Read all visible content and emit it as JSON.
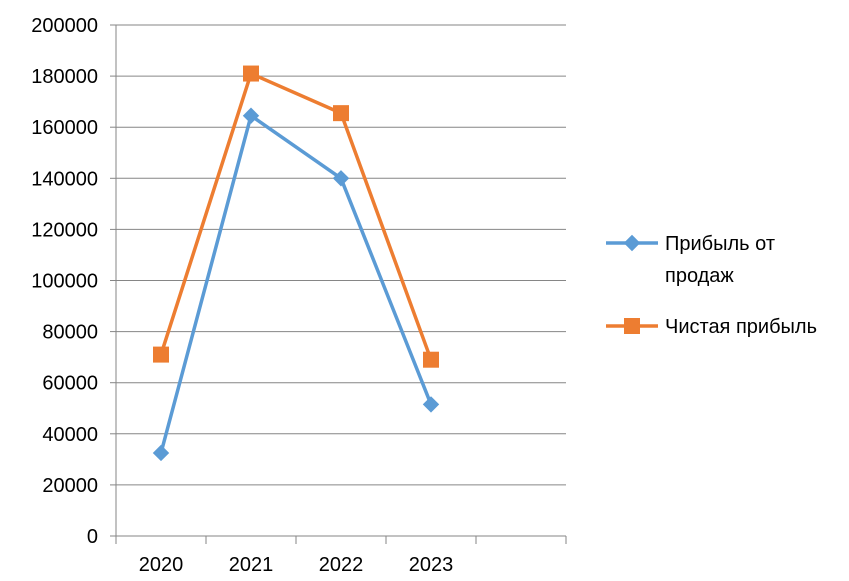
{
  "chart_data": {
    "type": "line",
    "title": "",
    "xlabel": "",
    "ylabel": "",
    "categories": [
      "2020",
      "2021",
      "2022",
      "2023"
    ],
    "ylim": [
      0,
      200000
    ],
    "y_ticks": [
      0,
      20000,
      40000,
      60000,
      80000,
      100000,
      120000,
      140000,
      160000,
      180000,
      200000
    ],
    "y_tick_labels": [
      "0",
      "20000",
      "40000",
      "60000",
      "80000",
      "100000",
      "120000",
      "140000",
      "160000",
      "180000",
      "200000"
    ],
    "grid": "horizontal",
    "legend_position": "right",
    "series": [
      {
        "name": "Прибыль от продаж",
        "name_lines": [
          "Прибыль от",
          "продаж"
        ],
        "values": [
          32500,
          164500,
          140000,
          51500
        ],
        "color": "#5B9BD5",
        "marker": "diamond"
      },
      {
        "name": "Чистая прибыль",
        "name_lines": [
          "Чистая прибыль"
        ],
        "values": [
          71000,
          181000,
          165500,
          69000
        ],
        "color": "#ED7D31",
        "marker": "square"
      }
    ]
  }
}
